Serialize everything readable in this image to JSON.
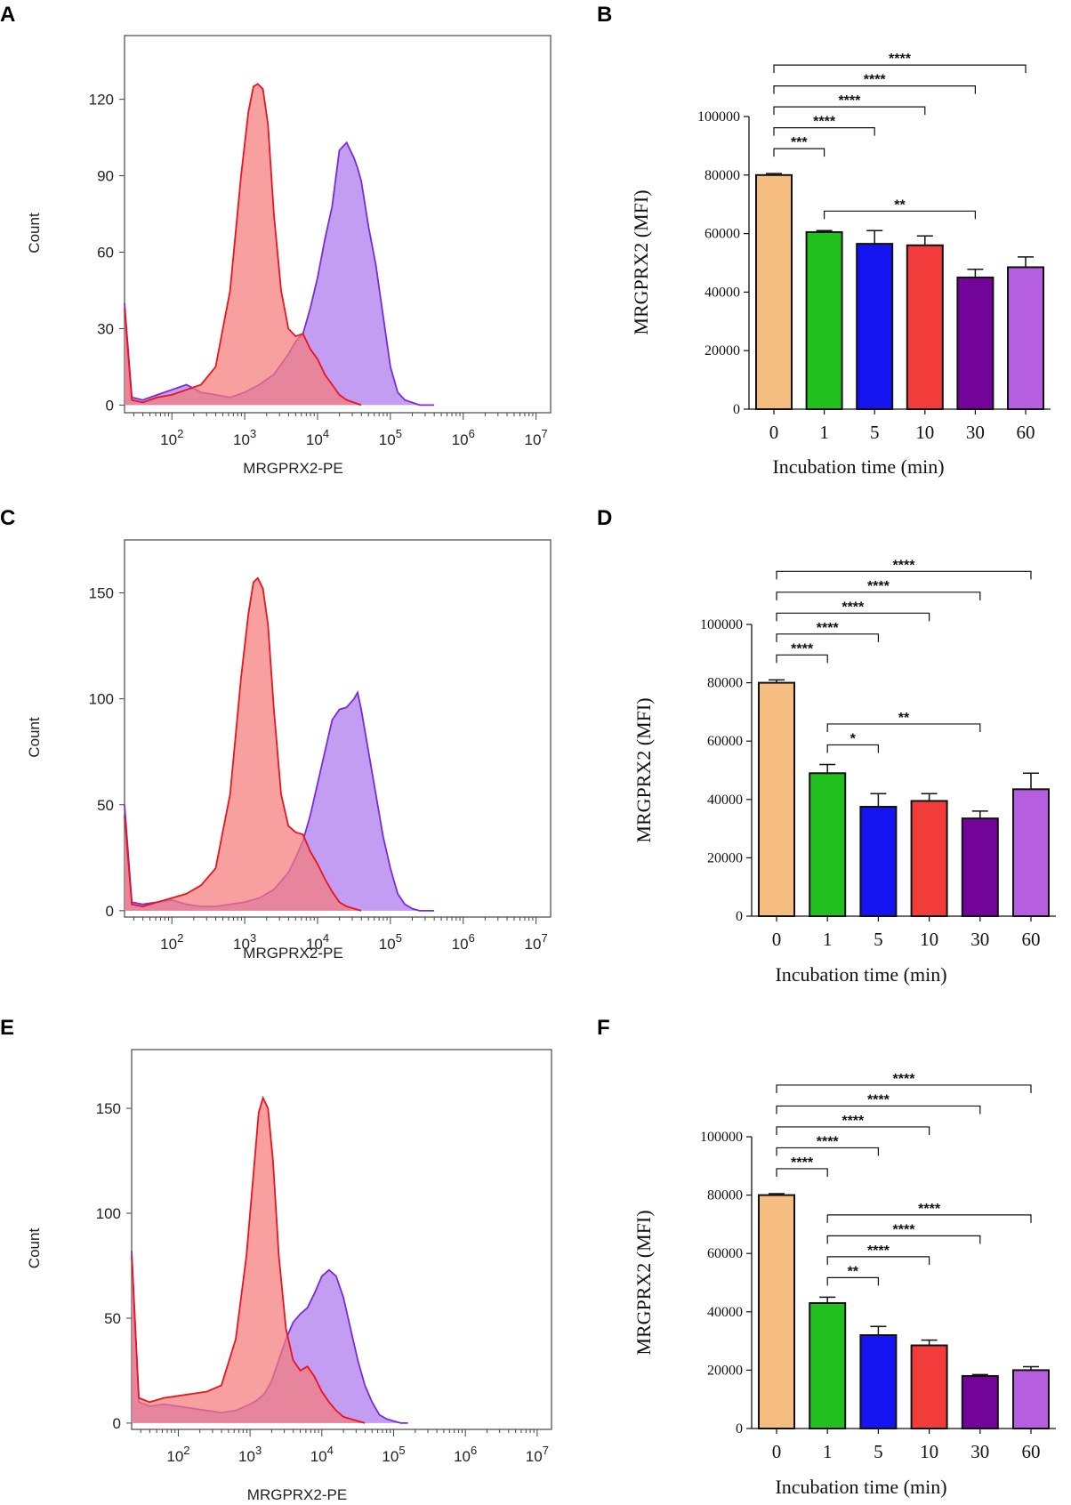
{
  "colors": {
    "red_fill": "#f57c7c",
    "red_line": "#e8141e",
    "purple_fill": "#b98cf0",
    "purple_line": "#7a2bd6",
    "bar_0": "#f5bd80",
    "bar_1": "#22c01e",
    "bar_5": "#1414f0",
    "bar_10": "#f23c3c",
    "bar_30": "#73049a",
    "bar_60": "#b55ee0"
  },
  "chart_data": [
    {
      "panel": "A",
      "type": "area",
      "xlabel": "MRGPRX2-PE",
      "ylabel": "Count",
      "xscale": "log",
      "xlim": [
        1.35,
        7.2
      ],
      "ylim": [
        -3,
        145
      ],
      "yticks": [
        "0",
        "30",
        "60",
        "90",
        "120"
      ],
      "ytick_values": [
        0,
        30,
        60,
        90,
        120
      ],
      "xtick_exponents": [
        2,
        3,
        4,
        5,
        6,
        7
      ],
      "series": [
        {
          "name": "red",
          "x": [
            1.35,
            1.45,
            1.6,
            1.8,
            2.0,
            2.2,
            2.4,
            2.6,
            2.8,
            2.95,
            3.05,
            3.12,
            3.18,
            3.25,
            3.32,
            3.4,
            3.5,
            3.6,
            3.7,
            3.8,
            3.9,
            4.0,
            4.1,
            4.2,
            4.3,
            4.4,
            4.5,
            4.6
          ],
          "y": [
            38,
            2,
            1,
            3,
            4,
            6,
            8,
            15,
            45,
            90,
            115,
            125,
            126,
            124,
            110,
            75,
            45,
            30,
            27,
            28,
            22,
            18,
            12,
            8,
            4,
            2,
            1,
            0
          ]
        },
        {
          "name": "purple",
          "x": [
            1.35,
            1.45,
            1.6,
            1.8,
            2.0,
            2.2,
            2.4,
            2.6,
            2.8,
            3.0,
            3.2,
            3.4,
            3.6,
            3.7,
            3.8,
            3.9,
            4.0,
            4.1,
            4.2,
            4.3,
            4.4,
            4.45,
            4.5,
            4.55,
            4.6,
            4.7,
            4.8,
            4.9,
            5.0,
            5.1,
            5.2,
            5.3,
            5.4,
            5.5,
            5.6
          ],
          "y": [
            40,
            3,
            2,
            4,
            6,
            8,
            5,
            4,
            3,
            5,
            8,
            12,
            20,
            25,
            28,
            38,
            50,
            65,
            78,
            100,
            103,
            100,
            97,
            93,
            88,
            70,
            55,
            35,
            15,
            5,
            2,
            1,
            0,
            0,
            0
          ]
        }
      ]
    },
    {
      "panel": "C",
      "type": "area",
      "xlabel": "MRGPRX2-PE",
      "ylabel": "Count",
      "xscale": "log",
      "xlim": [
        1.35,
        7.2
      ],
      "ylim": [
        -3,
        175
      ],
      "yticks": [
        "0",
        "50",
        "100",
        "150"
      ],
      "ytick_values": [
        0,
        50,
        100,
        150
      ],
      "xtick_exponents": [
        2,
        3,
        4,
        5,
        6,
        7
      ],
      "series": [
        {
          "name": "red",
          "x": [
            1.35,
            1.45,
            1.6,
            1.8,
            2.0,
            2.2,
            2.4,
            2.6,
            2.8,
            2.95,
            3.05,
            3.12,
            3.18,
            3.25,
            3.32,
            3.4,
            3.5,
            3.6,
            3.7,
            3.8,
            3.9,
            4.0,
            4.1,
            4.2,
            4.3,
            4.4,
            4.5,
            4.6
          ],
          "y": [
            45,
            3,
            2,
            4,
            6,
            8,
            12,
            20,
            55,
            110,
            140,
            155,
            157,
            152,
            135,
            95,
            55,
            40,
            37,
            36,
            28,
            22,
            15,
            9,
            4,
            2,
            1,
            0
          ]
        },
        {
          "name": "purple",
          "x": [
            1.35,
            1.45,
            1.6,
            1.8,
            2.0,
            2.2,
            2.4,
            2.6,
            2.8,
            3.0,
            3.2,
            3.4,
            3.6,
            3.7,
            3.8,
            3.9,
            4.0,
            4.1,
            4.2,
            4.3,
            4.4,
            4.45,
            4.5,
            4.55,
            4.6,
            4.7,
            4.8,
            4.9,
            5.0,
            5.1,
            5.2,
            5.3,
            5.4,
            5.5,
            5.6
          ],
          "y": [
            50,
            4,
            3,
            4,
            5,
            3,
            2,
            2,
            3,
            4,
            6,
            10,
            18,
            25,
            33,
            45,
            60,
            75,
            90,
            95,
            96,
            98,
            100,
            103,
            95,
            75,
            55,
            35,
            20,
            8,
            3,
            1,
            0,
            0,
            0
          ]
        }
      ]
    },
    {
      "panel": "E",
      "type": "area",
      "xlabel": "MRGPRX2-PE",
      "ylabel": "Count",
      "xscale": "log",
      "xlim": [
        1.35,
        7.2
      ],
      "ylim": [
        -3,
        178
      ],
      "yticks": [
        "0",
        "50",
        "100",
        "150"
      ],
      "ytick_values": [
        0,
        50,
        100,
        150
      ],
      "xtick_exponents": [
        2,
        3,
        4,
        5,
        6,
        7
      ],
      "series": [
        {
          "name": "red",
          "x": [
            1.35,
            1.45,
            1.6,
            1.8,
            2.0,
            2.2,
            2.4,
            2.6,
            2.8,
            2.95,
            3.05,
            3.12,
            3.18,
            3.25,
            3.32,
            3.4,
            3.5,
            3.6,
            3.7,
            3.8,
            3.9,
            4.0,
            4.1,
            4.2,
            4.3,
            4.4,
            4.5,
            4.6
          ],
          "y": [
            80,
            12,
            10,
            12,
            13,
            14,
            15,
            18,
            40,
            80,
            120,
            148,
            155,
            150,
            125,
            80,
            45,
            30,
            25,
            27,
            22,
            15,
            10,
            6,
            3,
            2,
            1,
            0
          ]
        },
        {
          "name": "purple",
          "x": [
            1.35,
            1.45,
            1.6,
            1.8,
            2.0,
            2.2,
            2.4,
            2.6,
            2.8,
            3.0,
            3.1,
            3.2,
            3.3,
            3.4,
            3.5,
            3.6,
            3.7,
            3.8,
            3.9,
            4.0,
            4.1,
            4.2,
            4.3,
            4.4,
            4.5,
            4.6,
            4.7,
            4.8,
            4.9,
            5.0,
            5.1,
            5.2
          ],
          "y": [
            82,
            10,
            8,
            9,
            8,
            7,
            6,
            5,
            6,
            9,
            11,
            14,
            20,
            30,
            40,
            48,
            52,
            55,
            62,
            70,
            73,
            70,
            60,
            45,
            30,
            18,
            10,
            4,
            2,
            1,
            0,
            0
          ]
        }
      ]
    },
    {
      "panel": "B",
      "type": "bar",
      "xlabel": "Incubation time (min)",
      "ylabel": "MRGPRX2 (MFI)",
      "ylim": [
        0,
        100000
      ],
      "yticks": [
        "0",
        "20000",
        "40000",
        "60000",
        "80000",
        "100000"
      ],
      "ytick_values": [
        0,
        20000,
        40000,
        60000,
        80000,
        100000
      ],
      "categories": [
        "0",
        "1",
        "5",
        "10",
        "30",
        "60"
      ],
      "values": [
        80000,
        60500,
        56500,
        56000,
        45000,
        48500
      ],
      "errors": [
        500,
        500,
        4500,
        3200,
        2800,
        3500
      ],
      "significance": [
        {
          "from": "0",
          "to": "1",
          "label": "***"
        },
        {
          "from": "0",
          "to": "5",
          "label": "****"
        },
        {
          "from": "0",
          "to": "10",
          "label": "****"
        },
        {
          "from": "0",
          "to": "30",
          "label": "****"
        },
        {
          "from": "0",
          "to": "60",
          "label": "****"
        },
        {
          "from": "1",
          "to": "30",
          "label": "**"
        }
      ]
    },
    {
      "panel": "D",
      "type": "bar",
      "xlabel": "Incubation time (min)",
      "ylabel": "MRGPRX2 (MFI)",
      "ylim": [
        0,
        100000
      ],
      "yticks": [
        "0",
        "20000",
        "40000",
        "60000",
        "80000",
        "100000"
      ],
      "ytick_values": [
        0,
        20000,
        40000,
        60000,
        80000,
        100000
      ],
      "categories": [
        "0",
        "1",
        "5",
        "10",
        "30",
        "60"
      ],
      "values": [
        80000,
        49000,
        37500,
        39500,
        33500,
        43500
      ],
      "errors": [
        1000,
        3000,
        4500,
        2500,
        2500,
        5500
      ],
      "significance": [
        {
          "from": "0",
          "to": "1",
          "label": "****"
        },
        {
          "from": "0",
          "to": "5",
          "label": "****"
        },
        {
          "from": "0",
          "to": "10",
          "label": "****"
        },
        {
          "from": "0",
          "to": "30",
          "label": "****"
        },
        {
          "from": "0",
          "to": "60",
          "label": "****"
        },
        {
          "from": "1",
          "to": "5",
          "label": "*"
        },
        {
          "from": "1",
          "to": "30",
          "label": "**"
        }
      ]
    },
    {
      "panel": "F",
      "type": "bar",
      "xlabel": "Incubation time (min)",
      "ylabel": "MRGPRX2 (MFI)",
      "ylim": [
        0,
        100000
      ],
      "yticks": [
        "0",
        "20000",
        "40000",
        "60000",
        "80000",
        "100000"
      ],
      "ytick_values": [
        0,
        20000,
        40000,
        60000,
        80000,
        100000
      ],
      "categories": [
        "0",
        "1",
        "5",
        "10",
        "30",
        "60"
      ],
      "values": [
        80000,
        43000,
        32000,
        28500,
        18000,
        20000
      ],
      "errors": [
        500,
        2000,
        3000,
        1800,
        500,
        1200
      ],
      "significance": [
        {
          "from": "0",
          "to": "1",
          "label": "****"
        },
        {
          "from": "0",
          "to": "5",
          "label": "****"
        },
        {
          "from": "0",
          "to": "10",
          "label": "****"
        },
        {
          "from": "0",
          "to": "30",
          "label": "****"
        },
        {
          "from": "0",
          "to": "60",
          "label": "****"
        },
        {
          "from": "1",
          "to": "5",
          "label": "**"
        },
        {
          "from": "1",
          "to": "10",
          "label": "****"
        },
        {
          "from": "1",
          "to": "30",
          "label": "****"
        },
        {
          "from": "1",
          "to": "60",
          "label": "****"
        }
      ]
    }
  ]
}
